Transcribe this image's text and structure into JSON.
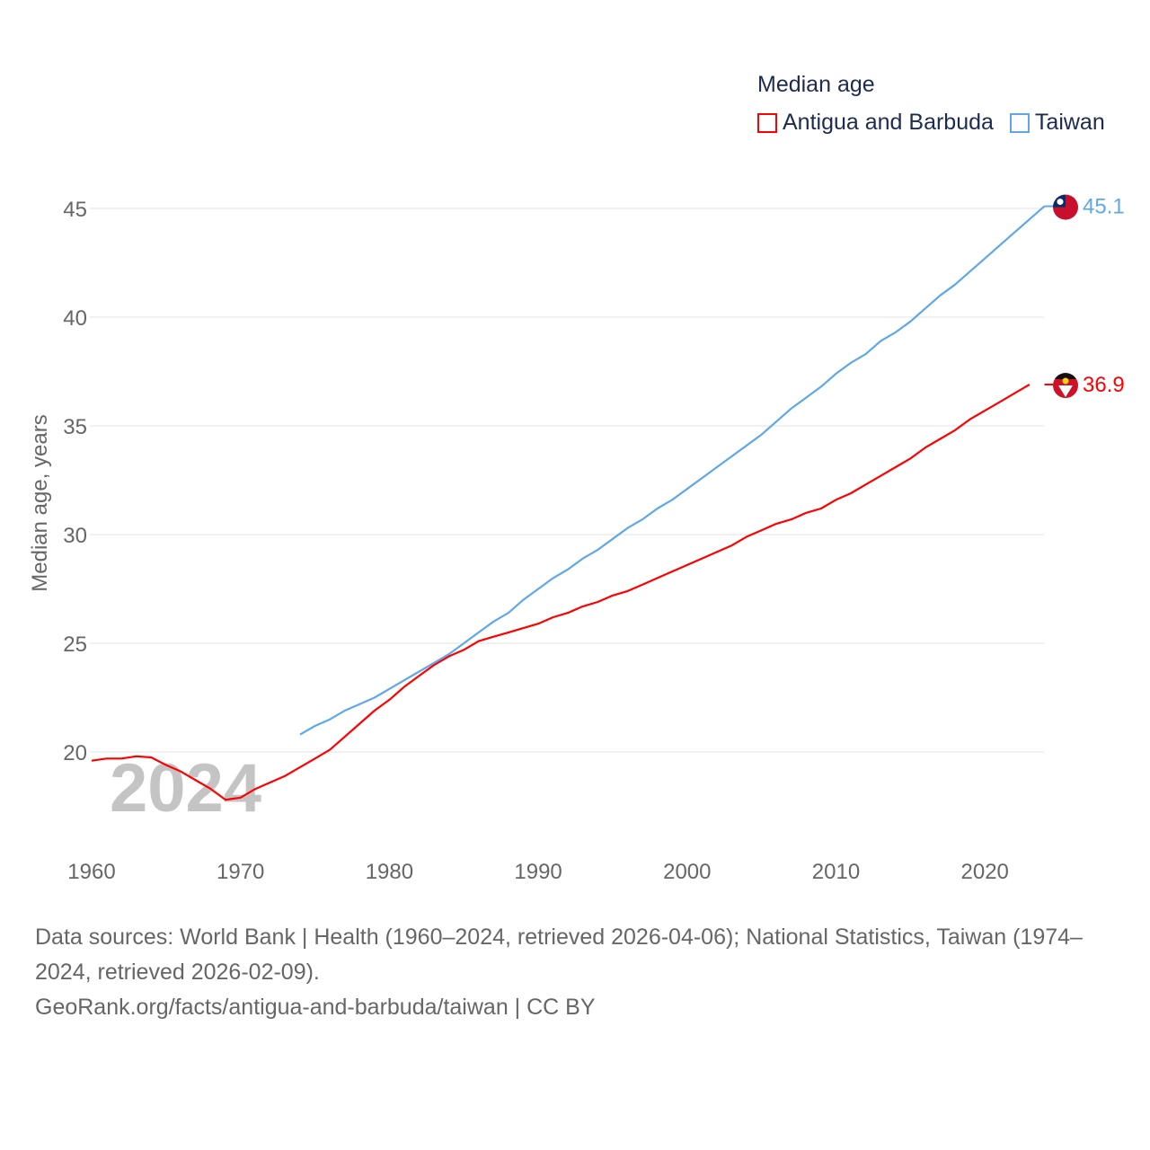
{
  "chart_data": {
    "type": "line",
    "title": "Median age",
    "ylabel": "Median age, years",
    "xlabel": "",
    "xlim": [
      1960,
      2024
    ],
    "ylim": [
      16,
      47
    ],
    "x_ticks": [
      "1960",
      "1970",
      "1980",
      "1990",
      "2000",
      "2010",
      "2020"
    ],
    "y_ticks": [
      "20",
      "25",
      "30",
      "35",
      "40",
      "45"
    ],
    "grid": true,
    "legend_position": "top-right",
    "year_watermark": "2024",
    "series": [
      {
        "name": "Antigua and Barbuda",
        "color": "#ff0000",
        "start_year": 1960,
        "end_label": "36.9",
        "values": [
          19.6,
          19.7,
          19.7,
          19.8,
          19.75,
          19.4,
          19.1,
          18.7,
          18.3,
          17.8,
          17.9,
          18.3,
          18.6,
          18.9,
          19.3,
          19.7,
          20.1,
          20.7,
          21.3,
          21.9,
          22.4,
          23.0,
          23.5,
          24.0,
          24.4,
          24.7,
          25.1,
          25.3,
          25.5,
          25.7,
          25.9,
          26.2,
          26.4,
          26.7,
          26.9,
          27.2,
          27.4,
          27.7,
          28.0,
          28.3,
          28.6,
          28.9,
          29.2,
          29.5,
          29.9,
          30.2,
          30.5,
          30.7,
          31.0,
          31.2,
          31.6,
          31.9,
          32.3,
          32.7,
          33.1,
          33.5,
          34.0,
          34.4,
          34.8,
          35.3,
          35.7,
          36.1,
          36.5,
          36.9
        ]
      },
      {
        "name": "Taiwan",
        "color": "#5fa8e8",
        "start_year": 1974,
        "end_label": "45.1",
        "values": [
          20.8,
          21.2,
          21.5,
          21.9,
          22.2,
          22.5,
          22.9,
          23.3,
          23.7,
          24.1,
          24.5,
          25.0,
          25.5,
          26.0,
          26.4,
          27.0,
          27.5,
          28.0,
          28.4,
          28.9,
          29.3,
          29.8,
          30.3,
          30.7,
          31.2,
          31.6,
          32.1,
          32.6,
          33.1,
          33.6,
          34.1,
          34.6,
          35.2,
          35.8,
          36.3,
          36.8,
          37.4,
          37.9,
          38.3,
          38.9,
          39.3,
          39.8,
          40.4,
          41.0,
          41.5,
          42.1,
          42.7,
          43.3,
          43.9,
          44.5,
          45.1
        ]
      }
    ]
  },
  "footer": {
    "sources": "Data sources: World Bank | Health (1960–2024, retrieved 2026-04-06); National Statistics, Taiwan (1974–2024, retrieved 2026-02-09).",
    "link": "GeoRank.org/facts/antigua-and-barbuda/taiwan | CC BY"
  }
}
